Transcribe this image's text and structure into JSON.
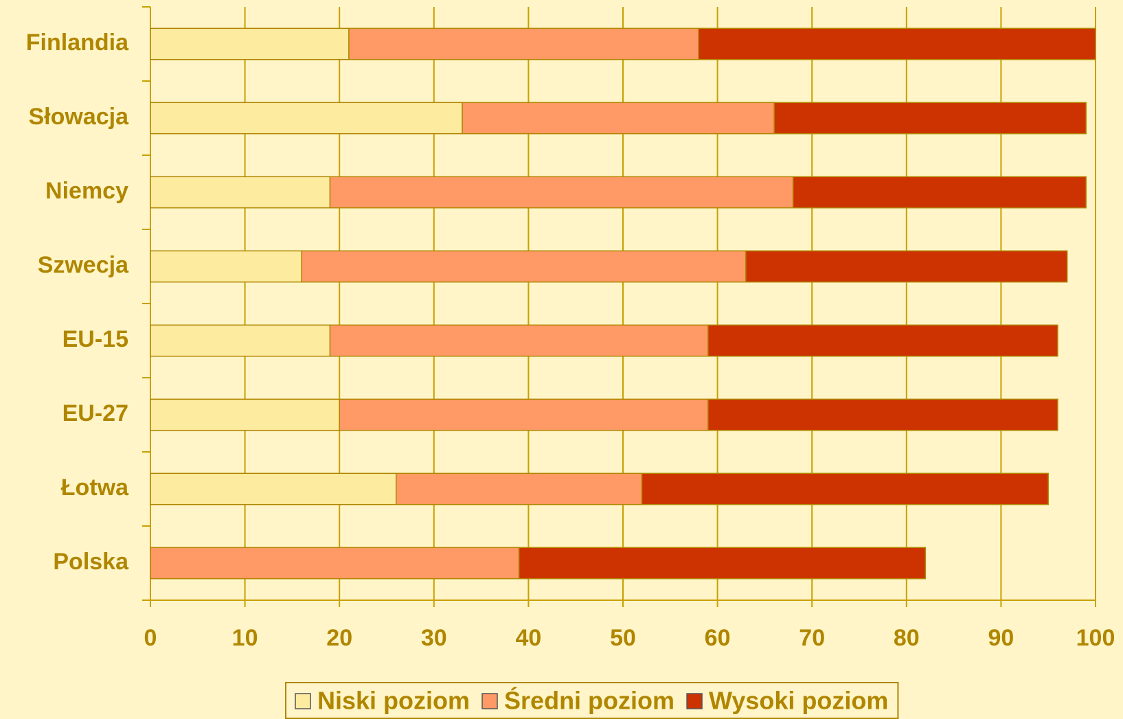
{
  "chart_data": {
    "type": "stacked_bar_horizontal",
    "categories": [
      "Finlandia",
      "Słowacja",
      "Niemcy",
      "Szwecja",
      "EU-15",
      "EU-27",
      "Łotwa",
      "Polska"
    ],
    "series": [
      {
        "name": "Niski poziom",
        "color": "#fdeba0",
        "values": [
          21,
          33,
          19,
          16,
          19,
          20,
          26,
          0
        ]
      },
      {
        "name": "Średni poziom",
        "color": "#ff9966",
        "values": [
          37,
          33,
          49,
          47,
          40,
          39,
          26,
          39
        ]
      },
      {
        "name": "Wysoki poziom",
        "color": "#cc3300",
        "values": [
          42,
          33,
          31,
          34,
          37,
          37,
          43,
          43
        ]
      }
    ],
    "xlim": [
      0,
      100
    ],
    "xticks": [
      0,
      10,
      20,
      30,
      40,
      50,
      60,
      70,
      80,
      90,
      100
    ],
    "grid": true,
    "legend": "bottom"
  }
}
